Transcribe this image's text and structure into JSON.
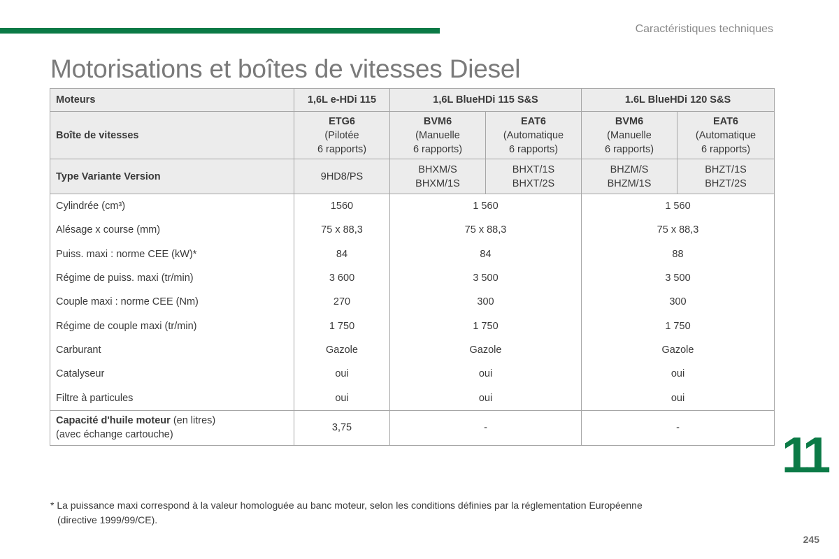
{
  "header": {
    "section": "Caractéristiques techniques"
  },
  "title": "Motorisations et boîtes de vitesses Diesel",
  "table": {
    "engines_label": "Moteurs",
    "engines": [
      "1,6L e-HDi 115",
      "1,6L BlueHDi 115 S&S",
      "1.6L BlueHDi 120 S&S"
    ],
    "gearbox_label": "Boîte de vitesses",
    "gearboxes": [
      {
        "code": "ETG6",
        "line1": "(Pilotée",
        "line2": "6 rapports)"
      },
      {
        "code": "BVM6",
        "line1": "(Manuelle",
        "line2": "6 rapports)"
      },
      {
        "code": "EAT6",
        "line1": "(Automatique",
        "line2": "6 rapports)"
      },
      {
        "code": "BVM6",
        "line1": "(Manuelle",
        "line2": "6 rapports)"
      },
      {
        "code": "EAT6",
        "line1": "(Automatique",
        "line2": "6 rapports)"
      }
    ],
    "type_label": "Type Variante Version",
    "types": [
      {
        "line1": "9HD8/PS",
        "line2": ""
      },
      {
        "line1": "BHXM/S",
        "line2": "BHXM/1S"
      },
      {
        "line1": "BHXT/1S",
        "line2": "BHXT/2S"
      },
      {
        "line1": "BHZM/S",
        "line2": "BHZM/1S"
      },
      {
        "line1": "BHZT/1S",
        "line2": "BHZT/2S"
      }
    ],
    "rows": [
      {
        "label": "Cylindrée (cm³)",
        "values": [
          "1560",
          "1 560",
          "1 560"
        ]
      },
      {
        "label": "Alésage x course (mm)",
        "values": [
          "75 x 88,3",
          "75 x 88,3",
          "75 x 88,3"
        ]
      },
      {
        "label": "Puiss. maxi : norme CEE (kW)*",
        "values": [
          "84",
          "84",
          "88"
        ]
      },
      {
        "label": "Régime de puiss. maxi (tr/min)",
        "values": [
          "3 600",
          "3 500",
          "3 500"
        ]
      },
      {
        "label": "Couple maxi : norme CEE (Nm)",
        "values": [
          "270",
          "300",
          "300"
        ]
      },
      {
        "label": "Régime de couple maxi (tr/min)",
        "values": [
          "1 750",
          "1 750",
          "1 750"
        ]
      },
      {
        "label": "Carburant",
        "values": [
          "Gazole",
          "Gazole",
          "Gazole"
        ]
      },
      {
        "label": "Catalyseur",
        "values": [
          "oui",
          "oui",
          "oui"
        ]
      },
      {
        "label": "Filtre à particules",
        "values": [
          "oui",
          "oui",
          "oui"
        ]
      }
    ],
    "oil": {
      "label_bold": "Capacité d'huile moteur",
      "label_rest": " (en litres)",
      "label_line2": "(avec échange cartouche)",
      "values": [
        "3,75",
        "-",
        "-"
      ]
    }
  },
  "chapter_number": "11",
  "footnote": {
    "line1": "* La puissance maxi correspond à la valeur homologuée au banc moteur, selon les conditions définies par la réglementation Européenne",
    "line2": "(directive 1999/99/CE)."
  },
  "page_number": "245",
  "colors": {
    "accent": "#0b7a46",
    "header_bg": "#ececec",
    "border": "#a6a6a6"
  }
}
